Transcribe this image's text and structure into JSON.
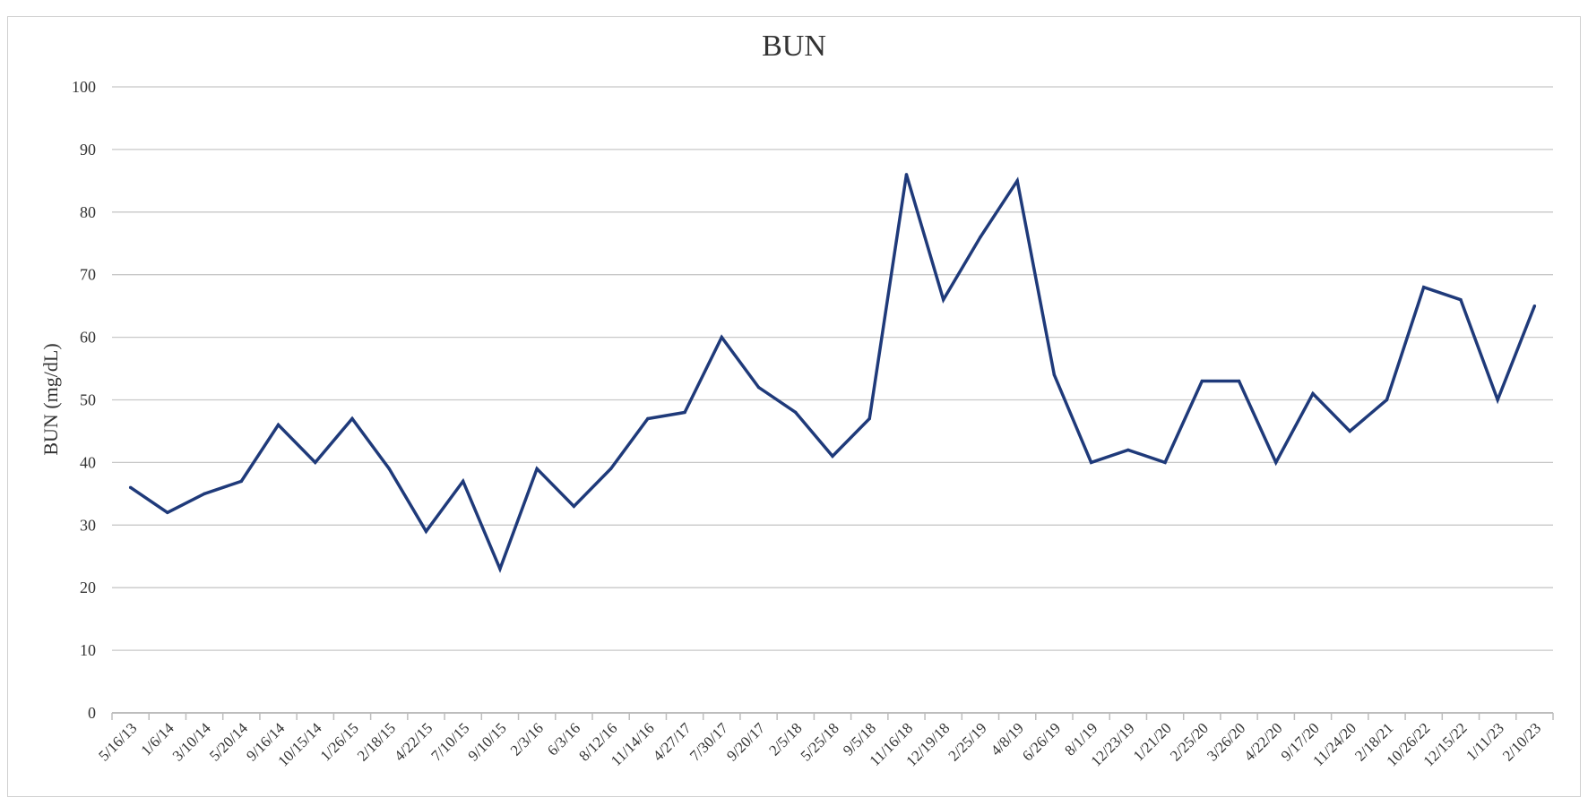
{
  "chart_data": {
    "type": "line",
    "title": "BUN",
    "xlabel": "",
    "ylabel": "BUN (mg/dL)",
    "ylim": [
      0,
      100
    ],
    "yticks": [
      0,
      10,
      20,
      30,
      40,
      50,
      60,
      70,
      80,
      90,
      100
    ],
    "grid": true,
    "line_color": "#1f3a7a",
    "categories": [
      "5/16/13",
      "1/6/14",
      "3/10/14",
      "5/20/14",
      "9/16/14",
      "10/15/14",
      "1/26/15",
      "2/18/15",
      "4/22/15",
      "7/10/15",
      "9/10/15",
      "2/3/16",
      "6/3/16",
      "8/12/16",
      "11/14/16",
      "4/27/17",
      "7/30/17",
      "9/20/17",
      "2/5/18",
      "5/25/18",
      "9/5/18",
      "11/16/18",
      "12/19/18",
      "2/25/19",
      "4/8/19",
      "6/26/19",
      "8/1/19",
      "12/23/19",
      "1/21/20",
      "2/25/20",
      "3/26/20",
      "4/22/20",
      "9/17/20",
      "11/24/20",
      "2/18/21",
      "10/26/22",
      "12/15/22",
      "1/11/23",
      "2/10/23"
    ],
    "values": [
      36,
      32,
      35,
      37,
      46,
      40,
      47,
      39,
      29,
      37,
      23,
      39,
      33,
      39,
      47,
      48,
      60,
      52,
      48,
      41,
      47,
      86,
      66,
      76,
      85,
      54,
      40,
      42,
      40,
      53,
      53,
      40,
      51,
      45,
      50,
      68,
      66,
      50,
      65
    ]
  }
}
